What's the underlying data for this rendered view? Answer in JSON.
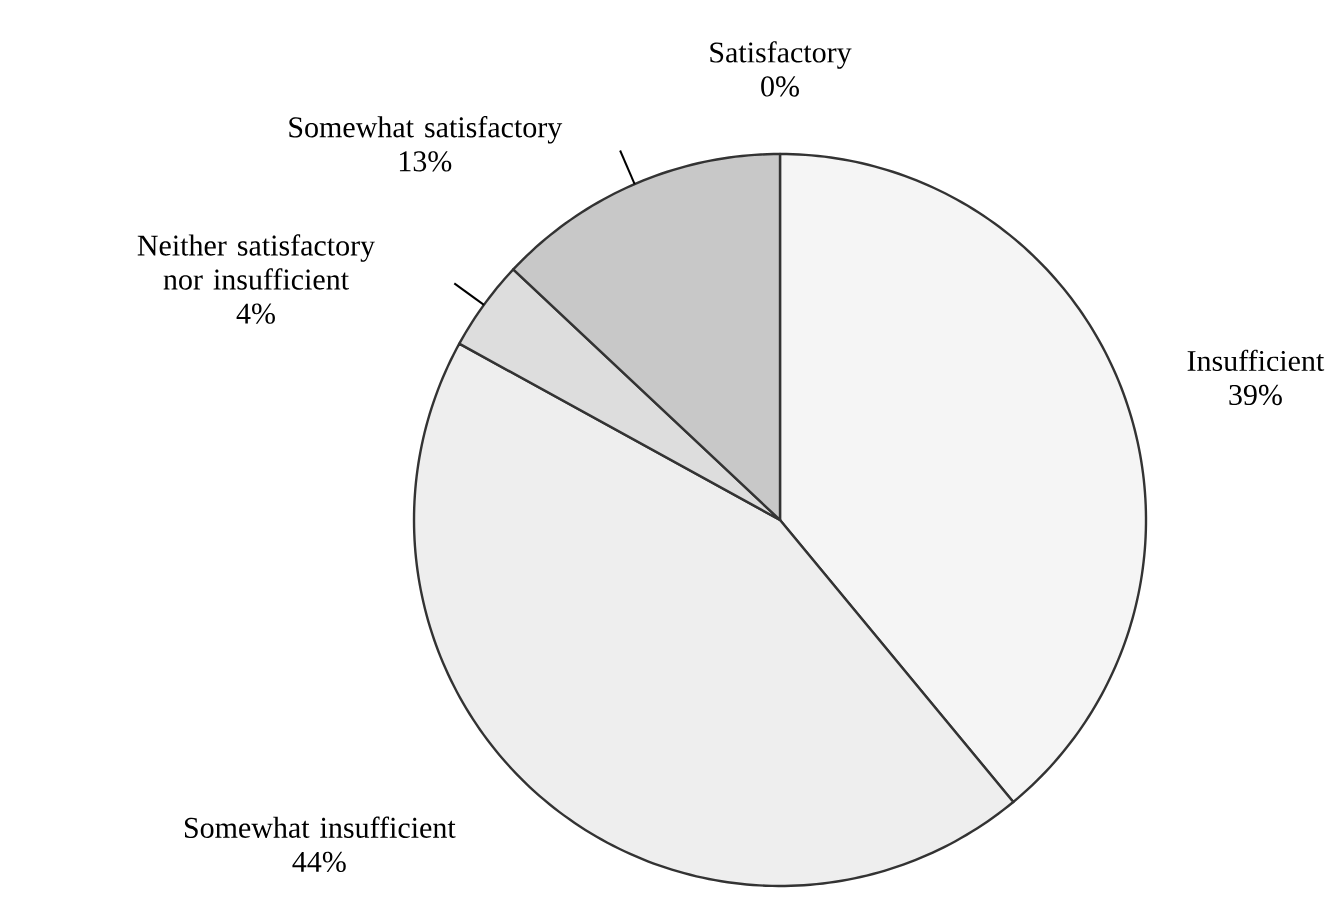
{
  "chart_data": {
    "type": "pie",
    "categories": [
      "Insufficient",
      "Somewhat insufficient",
      "Neither satisfactory nor insufficient",
      "Somewhat satisfactory",
      "Satisfactory"
    ],
    "values": [
      39,
      44,
      4,
      13,
      0
    ],
    "value_labels": [
      "39%",
      "44%",
      "4%",
      "13%",
      "0%"
    ],
    "colors": [
      "#f5f5f5",
      "#eeeeee",
      "#dddddd",
      "#c8c8c8",
      "#ffffff"
    ]
  }
}
